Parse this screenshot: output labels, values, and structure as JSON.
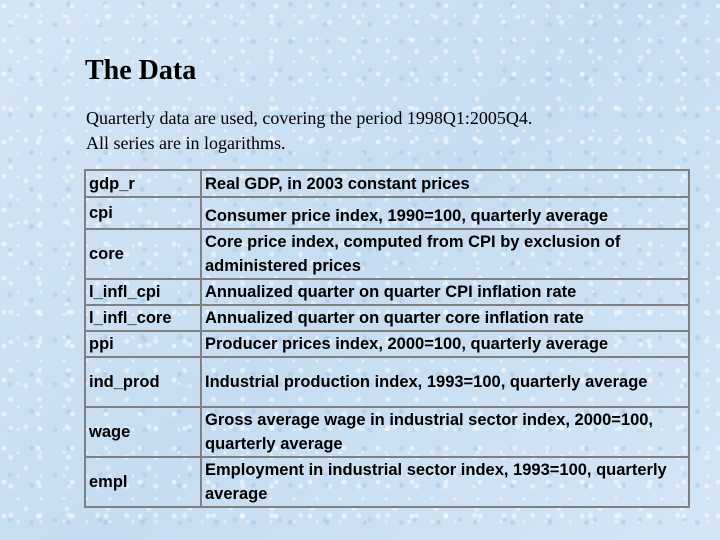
{
  "slide": {
    "title": "The Data",
    "subtitle_line1": "Quarterly data are used, covering the period 1998Q1:2005Q4.",
    "subtitle_line2": "All series are in logarithms."
  },
  "table": {
    "rows": [
      {
        "name": "gdp_r",
        "description": "Real GDP, in 2003 constant prices"
      },
      {
        "name": "cpi",
        "description": "Consumer price index, 1990=100, quarterly average"
      },
      {
        "name": "core",
        "description": "Core price index, computed from CPI by exclusion of administered prices"
      },
      {
        "name": "l_infl_cpi",
        "description": "Annualized quarter on quarter CPI inflation rate"
      },
      {
        "name": "l_infl_core",
        "description": "Annualized quarter on quarter core inflation rate"
      },
      {
        "name": "ppi",
        "description": "Producer prices index, 2000=100, quarterly average"
      },
      {
        "name": "ind_prod",
        "description": "Industrial production index, 1993=100, quarterly average"
      },
      {
        "name": "wage",
        "description": "Gross average wage in industrial sector index, 2000=100, quarterly average"
      },
      {
        "name": "empl",
        "description": "Employment in industrial sector index, 1993=100, quarterly average"
      }
    ]
  }
}
